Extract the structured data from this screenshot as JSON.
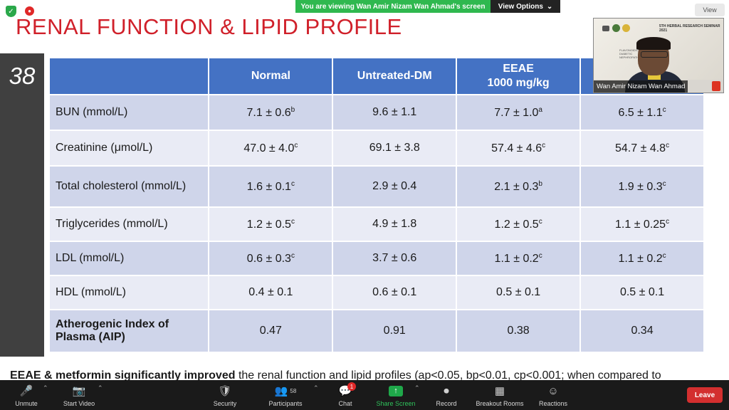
{
  "topbar": {
    "viewing_text": "You are viewing Wan Amir Nizam Wan Ahmad's screen",
    "view_options": "View Options",
    "view_button": "View"
  },
  "slide": {
    "title": "RENAL FUNCTION & LIPID PROFILE",
    "number": "38",
    "table": {
      "headers": [
        "",
        "Normal",
        "Untreated-DM",
        "EEAE\n1000 mg/kg",
        ""
      ],
      "rows": [
        {
          "label": "BUN (mmol/L)",
          "cells": [
            [
              "7.1 ± 0.6",
              "b"
            ],
            [
              "9.6 ± 1.1",
              ""
            ],
            [
              "7.7 ± 1.0",
              "a"
            ],
            [
              "6.5 ± 1.1",
              "c"
            ]
          ]
        },
        {
          "label": "Creatinine (μmol/L)",
          "cells": [
            [
              "47.0 ± 4.0",
              "c"
            ],
            [
              "69.1 ± 3.8",
              ""
            ],
            [
              "57.4 ± 4.6",
              "c"
            ],
            [
              "54.7 ± 4.8",
              "c"
            ]
          ]
        },
        {
          "label": "Total cholesterol (mmol/L)",
          "cells": [
            [
              "1.6 ± 0.1",
              "c"
            ],
            [
              "2.9 ± 0.4",
              ""
            ],
            [
              "2.1 ± 0.3",
              "b"
            ],
            [
              "1.9 ± 0.3",
              "c"
            ]
          ]
        },
        {
          "label": "Triglycerides (mmol/L)",
          "cells": [
            [
              "1.2 ± 0.5",
              "c"
            ],
            [
              "4.9 ± 1.8",
              ""
            ],
            [
              "1.2 ± 0.5",
              "c"
            ],
            [
              "1.1 ± 0.25",
              "c"
            ]
          ]
        },
        {
          "label": "LDL (mmol/L)",
          "cells": [
            [
              "0.6 ± 0.3",
              "c"
            ],
            [
              "3.7 ± 0.6",
              ""
            ],
            [
              "1.1 ± 0.2",
              "c"
            ],
            [
              "1.1 ± 0.2",
              "c"
            ]
          ]
        },
        {
          "label": "HDL (mmol/L)",
          "cells": [
            [
              "0.4 ± 0.1",
              ""
            ],
            [
              "0.6 ± 0.1",
              ""
            ],
            [
              "0.5 ± 0.1",
              ""
            ],
            [
              "0.5 ± 0.1",
              ""
            ]
          ]
        },
        {
          "label": "Atherogenic Index of Plasma (AIP)",
          "bold": true,
          "cells": [
            [
              "0.47",
              ""
            ],
            [
              "0.91",
              ""
            ],
            [
              "0.38",
              ""
            ],
            [
              "0.34",
              ""
            ]
          ]
        }
      ]
    },
    "footer": {
      "bold": "EEAE & metformin significantly improved",
      "rest": " the renal function and lipid profiles (ap<0.05, bp<0.01, cp<0.001; when compared to"
    }
  },
  "webcam": {
    "name": "Wan Amir Nizam Wan Ahmad",
    "poster_title": "5TH HERBAL RESEARCH SEMINAR 2021",
    "poster_sub": "FLAVONOIDS AND DIABETIC NEPHROPATHY"
  },
  "toolbar": {
    "unmute": "Unmute",
    "start_video": "Start Video",
    "security": "Security",
    "participants": "Participants",
    "participants_count": "58",
    "chat": "Chat",
    "chat_badge": "1",
    "share_screen": "Share Screen",
    "record": "Record",
    "breakout_rooms": "Breakout Rooms",
    "reactions": "Reactions",
    "leave": "Leave"
  },
  "colors": {
    "title_red": "#d0202a",
    "header_blue": "#4472c4",
    "row_odd": "#cfd5ea",
    "row_even": "#e9ebf5",
    "share_green": "#1fa84a",
    "leave_red": "#d32f2f"
  }
}
